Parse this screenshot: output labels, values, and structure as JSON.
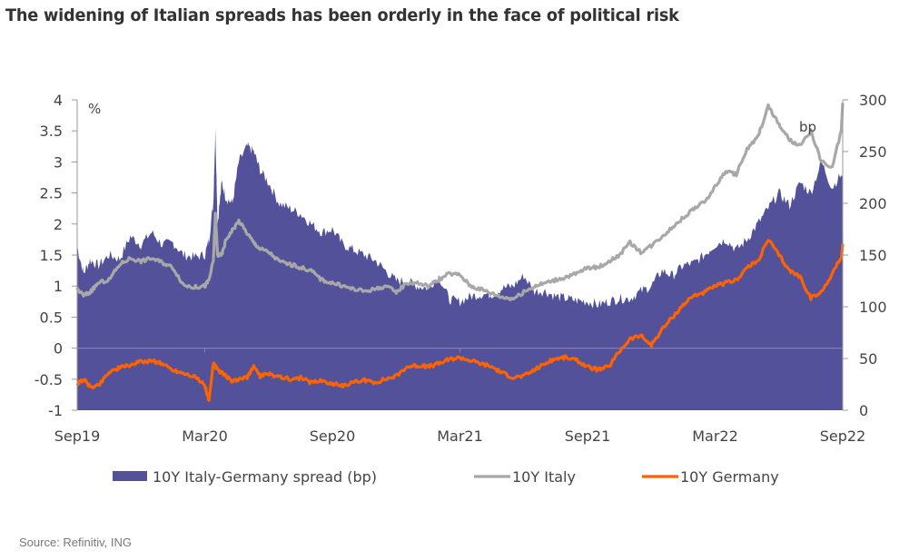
{
  "title": "The widening of Italian spreads has been orderly in the face of political risk",
  "source": "Source: Refinitiv, ING",
  "chart_data": {
    "type": "area+line",
    "title": "The widening of Italian spreads has been orderly in the face of political risk",
    "x_tick_labels": [
      "Sep19",
      "Mar20",
      "Sep20",
      "Mar21",
      "Sep21",
      "Mar22",
      "Sep22"
    ],
    "x_range_months": [
      0,
      36
    ],
    "left_axis": {
      "label": "%",
      "ylim": [
        -1,
        4
      ],
      "ticks": [
        4,
        3.5,
        3,
        2.5,
        2,
        1.5,
        1,
        0.5,
        0,
        -0.5,
        -1
      ]
    },
    "right_axis": {
      "label": "bp",
      "ylim": [
        0,
        300
      ],
      "ticks": [
        300,
        250,
        200,
        150,
        100,
        50,
        0
      ]
    },
    "grid": false,
    "zero_line": true,
    "legend_position": "bottom",
    "colors": {
      "spread": "#525199",
      "italy": "#A8A8A8",
      "germany": "#FF6200",
      "axis": "#999999",
      "zero_line": "#8080A8"
    },
    "series": [
      {
        "name": "10Y Italy-Germany spread (bp)",
        "axis": "right",
        "kind": "area",
        "x_months": [
          0,
          0.3,
          0.6,
          1,
          1.5,
          2,
          2.5,
          3,
          3.5,
          4,
          4.5,
          5,
          5.5,
          6,
          6.2,
          6.4,
          6.5,
          6.6,
          6.8,
          7,
          7.3,
          7.6,
          8,
          8.3,
          8.6,
          9,
          9.5,
          10,
          10.5,
          11,
          11.5,
          12,
          12.5,
          13,
          13.5,
          14,
          14.5,
          15,
          15.5,
          16,
          16.5,
          17,
          17.5,
          18,
          18.5,
          19,
          19.5,
          20,
          20.5,
          21,
          21.5,
          22,
          22.5,
          23,
          23.5,
          24,
          24.5,
          25,
          25.5,
          26,
          26.5,
          27,
          27.5,
          28,
          28.5,
          29,
          29.5,
          30,
          30.5,
          31,
          31.5,
          32,
          32.5,
          33,
          33.5,
          34,
          34.5,
          35,
          35.5,
          36
        ],
        "values": [
          158,
          132,
          145,
          140,
          150,
          146,
          168,
          160,
          172,
          160,
          162,
          150,
          148,
          150,
          165,
          200,
          270,
          180,
          220,
          205,
          200,
          240,
          255,
          250,
          232,
          220,
          200,
          195,
          190,
          180,
          172,
          175,
          160,
          155,
          150,
          145,
          135,
          125,
          125,
          120,
          118,
          130,
          107,
          105,
          110,
          112,
          112,
          118,
          120,
          130,
          115,
          115,
          110,
          108,
          106,
          105,
          102,
          105,
          108,
          108,
          115,
          120,
          135,
          130,
          140,
          142,
          150,
          160,
          165,
          155,
          165,
          180,
          195,
          210,
          198,
          220,
          210,
          240,
          215,
          230,
          220,
          228,
          225
        ],
        "note": "approximate, read from chart"
      },
      {
        "name": "10Y Italy",
        "axis": "left",
        "kind": "line",
        "x_months": [
          0,
          0.3,
          0.6,
          1,
          1.5,
          2,
          2.5,
          3,
          3.5,
          4,
          4.5,
          5,
          5.5,
          6,
          6.2,
          6.4,
          6.5,
          6.6,
          6.8,
          7,
          7.3,
          7.6,
          8,
          8.3,
          8.6,
          9,
          9.5,
          10,
          10.5,
          11,
          11.5,
          12,
          12.5,
          13,
          13.5,
          14,
          14.5,
          15,
          15.5,
          16,
          16.5,
          17,
          17.5,
          18,
          18.5,
          19,
          19.5,
          20,
          20.5,
          21,
          21.5,
          22,
          22.5,
          23,
          23.5,
          24,
          24.5,
          25,
          25.5,
          26,
          26.5,
          27,
          27.5,
          28,
          28.5,
          29,
          29.5,
          30,
          30.5,
          31,
          31.5,
          32,
          32.5,
          33,
          33.5,
          34,
          34.5,
          35,
          35.5,
          36
        ],
        "values": [
          0.95,
          0.85,
          0.9,
          1.05,
          1.1,
          1.35,
          1.45,
          1.4,
          1.45,
          1.38,
          1.3,
          1.02,
          0.98,
          1.0,
          1.1,
          1.4,
          2.15,
          1.5,
          1.5,
          1.75,
          1.9,
          2.05,
          1.85,
          1.7,
          1.6,
          1.55,
          1.4,
          1.35,
          1.3,
          1.25,
          1.1,
          1.05,
          1.0,
          0.95,
          0.92,
          0.95,
          1.0,
          0.9,
          1.05,
          1.05,
          1.0,
          1.1,
          1.2,
          1.18,
          1.0,
          0.95,
          0.88,
          0.82,
          0.8,
          0.9,
          1.0,
          1.05,
          1.1,
          1.15,
          1.2,
          1.3,
          1.3,
          1.4,
          1.5,
          1.7,
          1.55,
          1.65,
          1.8,
          1.95,
          2.1,
          2.25,
          2.35,
          2.6,
          2.85,
          2.8,
          3.2,
          3.4,
          3.9,
          3.6,
          3.35,
          3.25,
          3.5,
          3.0,
          2.9,
          3.6,
          3.95
        ],
        "note": "approximate, read from chart"
      },
      {
        "name": "10Y Germany",
        "axis": "left",
        "kind": "line",
        "x_months": [
          0,
          0.3,
          0.6,
          1,
          1.5,
          2,
          2.5,
          3,
          3.5,
          4,
          4.5,
          5,
          5.5,
          6,
          6.2,
          6.4,
          6.5,
          6.6,
          6.8,
          7,
          7.3,
          7.6,
          8,
          8.3,
          8.6,
          9,
          9.5,
          10,
          10.5,
          11,
          11.5,
          12,
          12.5,
          13,
          13.5,
          14,
          14.5,
          15,
          15.5,
          16,
          16.5,
          17,
          17.5,
          18,
          18.5,
          19,
          19.5,
          20,
          20.5,
          21,
          21.5,
          22,
          22.5,
          23,
          23.5,
          24,
          24.5,
          25,
          25.5,
          26,
          26.5,
          27,
          27.5,
          28,
          28.5,
          29,
          29.5,
          30,
          30.5,
          31,
          31.5,
          32,
          32.5,
          33,
          33.5,
          34,
          34.5,
          35,
          35.5,
          36
        ],
        "values": [
          -0.58,
          -0.5,
          -0.62,
          -0.6,
          -0.38,
          -0.32,
          -0.27,
          -0.22,
          -0.2,
          -0.25,
          -0.35,
          -0.4,
          -0.45,
          -0.6,
          -0.85,
          -0.25,
          -0.3,
          -0.35,
          -0.4,
          -0.45,
          -0.55,
          -0.5,
          -0.48,
          -0.28,
          -0.45,
          -0.42,
          -0.45,
          -0.5,
          -0.48,
          -0.55,
          -0.52,
          -0.58,
          -0.6,
          -0.55,
          -0.52,
          -0.55,
          -0.5,
          -0.45,
          -0.3,
          -0.28,
          -0.3,
          -0.25,
          -0.18,
          -0.15,
          -0.2,
          -0.25,
          -0.3,
          -0.4,
          -0.47,
          -0.45,
          -0.35,
          -0.25,
          -0.17,
          -0.15,
          -0.2,
          -0.3,
          -0.35,
          -0.3,
          -0.05,
          0.15,
          0.2,
          0.05,
          0.3,
          0.5,
          0.7,
          0.85,
          0.9,
          1.0,
          1.05,
          1.1,
          1.3,
          1.4,
          1.75,
          1.5,
          1.25,
          1.15,
          0.8,
          0.9,
          1.2,
          1.5,
          1.68
        ],
        "note": "approximate, read from chart"
      }
    ],
    "legend": [
      {
        "label": "10Y Italy-Germany spread (bp)",
        "swatch": "box",
        "color": "#525199"
      },
      {
        "label": "10Y Italy",
        "swatch": "line",
        "color": "#A8A8A8"
      },
      {
        "label": "10Y Germany",
        "swatch": "line",
        "color": "#FF6200"
      }
    ]
  }
}
